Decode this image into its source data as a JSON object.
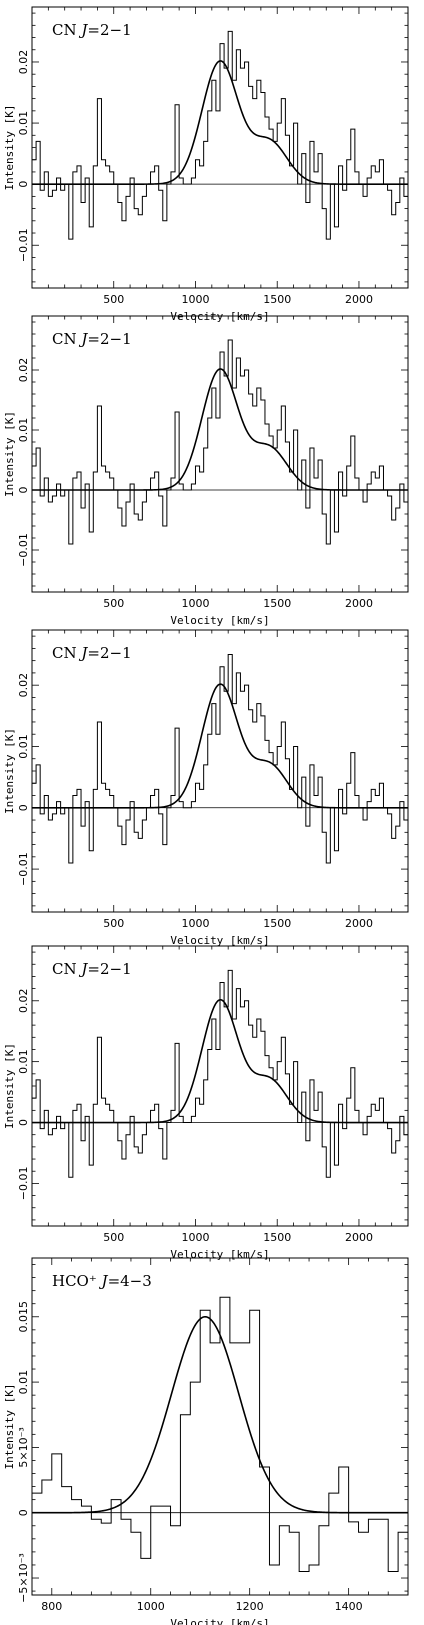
{
  "chart_data": [
    {
      "type": "line",
      "title": "CN J=2−1",
      "xlabel": "Velocity  [km/s]",
      "ylabel": "Intensity [K]",
      "xlim": [
        0,
        2300
      ],
      "ylim": [
        -0.017,
        0.029
      ],
      "xticks": [
        500,
        1000,
        1500,
        2000
      ],
      "xtick_labels": [
        "500",
        "1000",
        "1500",
        "2000"
      ],
      "yticks": [
        -0.01,
        0,
        0.01,
        0.02
      ],
      "ytick_labels": [
        "−0.01",
        "0",
        "0.01",
        "0.02"
      ],
      "spectrum": {
        "bin_width": 25,
        "x_start": 0,
        "values": [
          0.004,
          0.007,
          -0.001,
          0.002,
          -0.002,
          -0.001,
          0.001,
          -0.001,
          0.0,
          -0.009,
          0.002,
          0.003,
          -0.003,
          0.001,
          -0.007,
          0.003,
          0.014,
          0.004,
          0.003,
          0.002,
          0.0,
          -0.003,
          -0.006,
          -0.002,
          0.001,
          -0.004,
          -0.005,
          -0.002,
          0.0,
          0.002,
          0.003,
          -0.001,
          -0.006,
          0.0,
          0.002,
          0.013,
          0.001,
          0.0,
          0.0,
          0.001,
          0.004,
          0.003,
          0.007,
          0.012,
          0.017,
          0.012,
          0.023,
          0.019,
          0.025,
          0.017,
          0.022,
          0.019,
          0.02,
          0.016,
          0.014,
          0.017,
          0.015,
          0.011,
          0.009,
          0.007,
          0.01,
          0.014,
          0.008,
          0.003,
          0.01,
          0.0,
          0.005,
          -0.003,
          0.007,
          0.002,
          0.005,
          -0.004,
          -0.009,
          0.0,
          -0.007,
          0.003,
          -0.001,
          0.004,
          0.009,
          0.002,
          0.0,
          -0.002,
          0.001,
          0.003,
          0.002,
          0.004,
          0.0,
          -0.001,
          -0.005,
          -0.003,
          0.001,
          -0.002,
          -0.01,
          -0.013,
          -0.005
        ]
      },
      "fit": {
        "components": [
          {
            "amplitude": 0.02,
            "center": 1150,
            "sigma": 110
          },
          {
            "amplitude": 0.007,
            "center": 1450,
            "sigma": 110
          }
        ]
      }
    },
    {
      "type": "line",
      "title": "CN J=2−1",
      "xlabel": "Velocity  [km/s]",
      "ylabel": "Intensity [K]",
      "xlim": [
        0,
        2300
      ],
      "ylim": [
        -0.017,
        0.029
      ],
      "xticks": [
        500,
        1000,
        1500,
        2000
      ],
      "xtick_labels": [
        "500",
        "1000",
        "1500",
        "2000"
      ],
      "yticks": [
        -0.01,
        0,
        0.01,
        0.02
      ],
      "ytick_labels": [
        "−0.01",
        "0",
        "0.01",
        "0.02"
      ],
      "spectrum": {
        "bin_width": 25,
        "x_start": 0,
        "values": [
          0.004,
          0.007,
          -0.001,
          0.002,
          -0.002,
          -0.001,
          0.001,
          -0.001,
          0.0,
          -0.009,
          0.002,
          0.003,
          -0.003,
          0.001,
          -0.007,
          0.003,
          0.014,
          0.004,
          0.003,
          0.002,
          0.0,
          -0.003,
          -0.006,
          -0.002,
          0.001,
          -0.004,
          -0.005,
          -0.002,
          0.0,
          0.002,
          0.003,
          -0.001,
          -0.006,
          0.0,
          0.002,
          0.013,
          0.001,
          0.0,
          0.0,
          0.001,
          0.004,
          0.003,
          0.007,
          0.012,
          0.017,
          0.012,
          0.023,
          0.019,
          0.025,
          0.017,
          0.022,
          0.019,
          0.02,
          0.016,
          0.014,
          0.017,
          0.015,
          0.011,
          0.009,
          0.007,
          0.01,
          0.014,
          0.008,
          0.003,
          0.01,
          0.0,
          0.005,
          -0.003,
          0.007,
          0.002,
          0.005,
          -0.004,
          -0.009,
          0.0,
          -0.007,
          0.003,
          -0.001,
          0.004,
          0.009,
          0.002,
          0.0,
          -0.002,
          0.001,
          0.003,
          0.002,
          0.004,
          0.0,
          -0.001,
          -0.005,
          -0.003,
          0.001,
          -0.002,
          -0.01,
          -0.013,
          -0.005
        ]
      },
      "fit": {
        "components": [
          {
            "amplitude": 0.02,
            "center": 1150,
            "sigma": 110
          },
          {
            "amplitude": 0.007,
            "center": 1450,
            "sigma": 110
          }
        ]
      }
    },
    {
      "type": "line",
      "title": "CN J=2−1",
      "xlabel": "Velocity  [km/s]",
      "ylabel": "Intensity [K]",
      "xlim": [
        0,
        2300
      ],
      "ylim": [
        -0.017,
        0.029
      ],
      "xticks": [
        500,
        1000,
        1500,
        2000
      ],
      "xtick_labels": [
        "500",
        "1000",
        "1500",
        "2000"
      ],
      "yticks": [
        -0.01,
        0,
        0.01,
        0.02
      ],
      "ytick_labels": [
        "−0.01",
        "0",
        "0.01",
        "0.02"
      ],
      "spectrum": {
        "bin_width": 25,
        "x_start": 0,
        "values": [
          0.004,
          0.007,
          -0.001,
          0.002,
          -0.002,
          -0.001,
          0.001,
          -0.001,
          0.0,
          -0.009,
          0.002,
          0.003,
          -0.003,
          0.001,
          -0.007,
          0.003,
          0.014,
          0.004,
          0.003,
          0.002,
          0.0,
          -0.003,
          -0.006,
          -0.002,
          0.001,
          -0.004,
          -0.005,
          -0.002,
          0.0,
          0.002,
          0.003,
          -0.001,
          -0.006,
          0.0,
          0.002,
          0.013,
          0.001,
          0.0,
          0.0,
          0.001,
          0.004,
          0.003,
          0.007,
          0.012,
          0.017,
          0.012,
          0.023,
          0.019,
          0.025,
          0.017,
          0.022,
          0.019,
          0.02,
          0.016,
          0.014,
          0.017,
          0.015,
          0.011,
          0.009,
          0.007,
          0.01,
          0.014,
          0.008,
          0.003,
          0.01,
          0.0,
          0.005,
          -0.003,
          0.007,
          0.002,
          0.005,
          -0.004,
          -0.009,
          0.0,
          -0.007,
          0.003,
          -0.001,
          0.004,
          0.009,
          0.002,
          0.0,
          -0.002,
          0.001,
          0.003,
          0.002,
          0.004,
          0.0,
          -0.001,
          -0.005,
          -0.003,
          0.001,
          -0.002,
          -0.01,
          -0.013,
          -0.005
        ]
      },
      "fit": {
        "components": [
          {
            "amplitude": 0.02,
            "center": 1150,
            "sigma": 110
          },
          {
            "amplitude": 0.007,
            "center": 1450,
            "sigma": 110
          }
        ]
      }
    },
    {
      "type": "line",
      "title": "CN J=2−1",
      "xlabel": "Velocity  [km/s]",
      "ylabel": "Intensity [K]",
      "xlim": [
        0,
        2300
      ],
      "ylim": [
        -0.017,
        0.029
      ],
      "xticks": [
        500,
        1000,
        1500,
        2000
      ],
      "xtick_labels": [
        "500",
        "1000",
        "1500",
        "2000"
      ],
      "yticks": [
        -0.01,
        0,
        0.01,
        0.02
      ],
      "ytick_labels": [
        "−0.01",
        "0",
        "0.01",
        "0.02"
      ],
      "spectrum": {
        "bin_width": 25,
        "x_start": 0,
        "values": [
          0.004,
          0.007,
          -0.001,
          0.002,
          -0.002,
          -0.001,
          0.001,
          -0.001,
          0.0,
          -0.009,
          0.002,
          0.003,
          -0.003,
          0.001,
          -0.007,
          0.003,
          0.014,
          0.004,
          0.003,
          0.002,
          0.0,
          -0.003,
          -0.006,
          -0.002,
          0.001,
          -0.004,
          -0.005,
          -0.002,
          0.0,
          0.002,
          0.003,
          -0.001,
          -0.006,
          0.0,
          0.002,
          0.013,
          0.001,
          0.0,
          0.0,
          0.001,
          0.004,
          0.003,
          0.007,
          0.012,
          0.017,
          0.012,
          0.023,
          0.019,
          0.025,
          0.017,
          0.022,
          0.019,
          0.02,
          0.016,
          0.014,
          0.017,
          0.015,
          0.011,
          0.009,
          0.007,
          0.01,
          0.014,
          0.008,
          0.003,
          0.01,
          0.0,
          0.005,
          -0.003,
          0.007,
          0.002,
          0.005,
          -0.004,
          -0.009,
          0.0,
          -0.007,
          0.003,
          -0.001,
          0.004,
          0.009,
          0.002,
          0.0,
          -0.002,
          0.001,
          0.003,
          0.002,
          0.004,
          0.0,
          -0.001,
          -0.005,
          -0.003,
          0.001,
          -0.002,
          -0.01,
          -0.013,
          -0.005
        ]
      },
      "fit": {
        "components": [
          {
            "amplitude": 0.02,
            "center": 1150,
            "sigma": 110
          },
          {
            "amplitude": 0.007,
            "center": 1450,
            "sigma": 110
          }
        ]
      }
    },
    {
      "type": "line",
      "title": "HCO⁺ J=4−3",
      "xlabel": "Velocity  [km/s]",
      "ylabel": "Intensity [K]",
      "xlim": [
        760,
        1520
      ],
      "ylim": [
        -0.0063,
        0.0195
      ],
      "xticks": [
        800,
        1000,
        1200,
        1400
      ],
      "xtick_labels": [
        "800",
        "1000",
        "1200",
        "1400"
      ],
      "yticks": [
        -0.005,
        0,
        0.005,
        0.01,
        0.015
      ],
      "ytick_labels": [
        "−5×10⁻³",
        "0",
        "5×10⁻³",
        "0.01",
        "0.015"
      ],
      "spectrum": {
        "bin_width": 20,
        "x_start": 760,
        "values": [
          0.0015,
          0.0025,
          0.0045,
          0.002,
          0.001,
          0.0005,
          -0.0005,
          -0.0008,
          0.001,
          -0.0005,
          -0.0015,
          -0.0035,
          0.0005,
          0.0005,
          -0.001,
          0.0075,
          0.01,
          0.0155,
          0.013,
          0.0165,
          0.013,
          0.013,
          0.0155,
          0.0035,
          -0.004,
          -0.001,
          -0.0015,
          -0.0045,
          -0.004,
          -0.001,
          0.0015,
          0.0035,
          -0.0007,
          -0.0015,
          -0.0005,
          -0.0005,
          -0.0045,
          -0.0015
        ]
      },
      "fit": {
        "components": [
          {
            "amplitude": 0.015,
            "center": 1110,
            "sigma": 68
          }
        ]
      }
    }
  ]
}
